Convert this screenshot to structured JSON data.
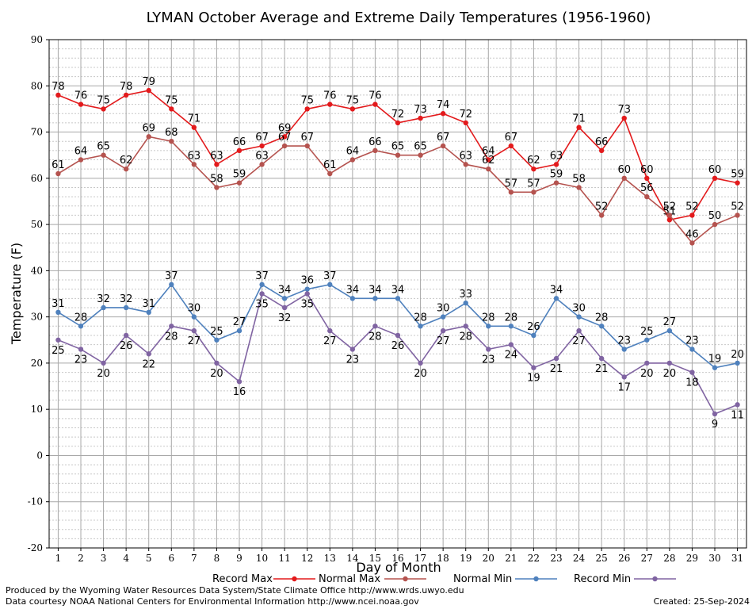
{
  "chart_data": {
    "type": "line",
    "title": "LYMAN October Average and Extreme Daily Temperatures (1956-1960)",
    "xlabel": "Day of Month",
    "ylabel": "Temperature (F)",
    "ylim": [
      -20,
      90
    ],
    "yticks": [
      -20,
      -10,
      0,
      10,
      20,
      30,
      40,
      50,
      60,
      70,
      80,
      90
    ],
    "xlim": [
      0.6,
      31.4
    ],
    "x": [
      1,
      2,
      3,
      4,
      5,
      6,
      7,
      8,
      9,
      10,
      11,
      12,
      13,
      14,
      15,
      16,
      17,
      18,
      19,
      20,
      21,
      22,
      23,
      24,
      25,
      26,
      27,
      28,
      29,
      30,
      31
    ],
    "grid": true,
    "legend_position": "bottom",
    "series": [
      {
        "name": "Record Max",
        "color": "#e31a1c",
        "label_position": "above",
        "values": [
          78,
          76,
          75,
          78,
          79,
          75,
          71,
          63,
          66,
          67,
          69,
          75,
          76,
          75,
          76,
          72,
          73,
          74,
          72,
          64,
          67,
          62,
          63,
          71,
          66,
          73,
          60,
          51,
          52,
          60,
          59
        ]
      },
      {
        "name": "Normal Max",
        "color": "#b5534f",
        "label_position": "above",
        "values": [
          61,
          64,
          65,
          62,
          69,
          68,
          63,
          58,
          59,
          63,
          67,
          67,
          61,
          64,
          66,
          65,
          65,
          67,
          63,
          62,
          57,
          57,
          59,
          58,
          52,
          60,
          56,
          52,
          46,
          50,
          52
        ]
      },
      {
        "name": "Normal Min",
        "color": "#4f81bd",
        "label_position": "above",
        "values": [
          31,
          28,
          32,
          32,
          31,
          37,
          30,
          25,
          27,
          37,
          34,
          36,
          37,
          34,
          34,
          34,
          28,
          30,
          33,
          28,
          28,
          26,
          34,
          30,
          28,
          23,
          25,
          27,
          23,
          19,
          20
        ]
      },
      {
        "name": "Record Min",
        "color": "#8064a2",
        "label_position": "below",
        "values": [
          25,
          23,
          20,
          26,
          22,
          28,
          27,
          20,
          16,
          35,
          32,
          35,
          27,
          23,
          28,
          26,
          20,
          27,
          28,
          23,
          24,
          19,
          21,
          27,
          21,
          17,
          20,
          20,
          18,
          9,
          11
        ]
      }
    ]
  },
  "footer": {
    "line1": "Produced by the Wyoming Water Resources Data System/State Climate Office http://www.wrds.uwyo.edu",
    "line2": "Data courtesy NOAA National Centers for Environmental Information http://www.ncei.noaa.gov",
    "created": "Created:  25-Sep-2024"
  }
}
